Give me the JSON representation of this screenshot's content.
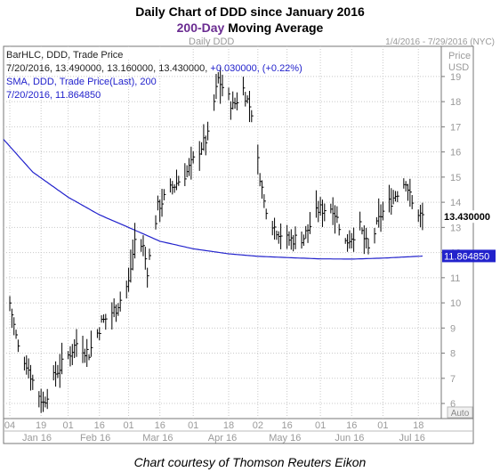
{
  "title_line1": "Daily Chart of DDD since January 2016",
  "title_line2_accent": "200-Day",
  "title_line2_rest": " Moving Average",
  "credit": "Chart courtesy of Thomson Reuters Eikon",
  "colors": {
    "price_bars": "#000000",
    "sma": "#2222cc",
    "accent": "#6a2c91",
    "grid": "#c8c8c8"
  },
  "chart_data": {
    "type": "line",
    "header_left": "Daily DDD",
    "header_right": "1/4/2016 - 7/29/2016 (NYC)",
    "axis_title": [
      "Price",
      "USD"
    ],
    "info_lines": [
      "BarHLC, DDD, Trade Price",
      "7/20/2016, 13.490000, 13.160000, 13.430000, +0.030000, (+0.22%)",
      "SMA, DDD, Trade Price(Last), 200",
      "7/20/2016, 11.864850"
    ],
    "ylim": [
      5.4,
      20.2
    ],
    "yticks": [
      6,
      7,
      8,
      9,
      10,
      11,
      12,
      13,
      14,
      15,
      16,
      17,
      18,
      19
    ],
    "xlim": [
      "2016-01-01",
      "2016-07-29"
    ],
    "x_ticks": [
      {
        "date": "2016-01-04",
        "label": "04"
      },
      {
        "date": "2016-01-19",
        "label": "19"
      },
      {
        "date": "2016-02-01",
        "label": "01"
      },
      {
        "date": "2016-02-16",
        "label": "16"
      },
      {
        "date": "2016-03-01",
        "label": "01"
      },
      {
        "date": "2016-03-16",
        "label": "16"
      },
      {
        "date": "2016-04-01",
        "label": "01"
      },
      {
        "date": "2016-04-18",
        "label": "18"
      },
      {
        "date": "2016-05-02",
        "label": "02"
      },
      {
        "date": "2016-05-16",
        "label": "16"
      },
      {
        "date": "2016-06-01",
        "label": "01"
      },
      {
        "date": "2016-06-16",
        "label": "16"
      },
      {
        "date": "2016-07-01",
        "label": "01"
      },
      {
        "date": "2016-07-18",
        "label": "18"
      }
    ],
    "month_labels": [
      {
        "date": "2016-01-17",
        "label": "Jan 16"
      },
      {
        "date": "2016-02-14",
        "label": "Feb 16"
      },
      {
        "date": "2016-03-15",
        "label": "Mar 16"
      },
      {
        "date": "2016-04-15",
        "label": "Apr 16"
      },
      {
        "date": "2016-05-15",
        "label": "May 16"
      },
      {
        "date": "2016-06-15",
        "label": "Jun 16"
      },
      {
        "date": "2016-07-15",
        "label": "Jul 16"
      }
    ],
    "auto_label": "Auto",
    "last_price": 13.43,
    "last_price_label": "13.430000",
    "sma_value": 11.86485,
    "sma_value_label": "11.864850",
    "series": [
      {
        "kind": "ohlc",
        "keypoints": [
          [
            "2016-01-04",
            10.0
          ],
          [
            "2016-01-08",
            8.2
          ],
          [
            "2016-01-12",
            7.6
          ],
          [
            "2016-01-15",
            6.9
          ],
          [
            "2016-01-20",
            6.0
          ],
          [
            "2016-01-26",
            7.2
          ],
          [
            "2016-02-01",
            7.9
          ],
          [
            "2016-02-05",
            8.4
          ],
          [
            "2016-02-11",
            8.0
          ],
          [
            "2016-02-17",
            9.2
          ],
          [
            "2016-02-24",
            9.8
          ],
          [
            "2016-03-01",
            10.8
          ],
          [
            "2016-03-04",
            12.5
          ],
          [
            "2016-03-08",
            12.2
          ],
          [
            "2016-03-10",
            11.3
          ],
          [
            "2016-03-15",
            13.8
          ],
          [
            "2016-03-22",
            14.6
          ],
          [
            "2016-03-29",
            15.2
          ],
          [
            "2016-04-04",
            16.1
          ],
          [
            "2016-04-08",
            16.6
          ],
          [
            "2016-04-13",
            18.9
          ],
          [
            "2016-04-20",
            17.8
          ],
          [
            "2016-04-25",
            18.5
          ],
          [
            "2016-04-29",
            17.6
          ],
          [
            "2016-05-02",
            15.6
          ],
          [
            "2016-05-05",
            14.0
          ],
          [
            "2016-05-10",
            13.0
          ],
          [
            "2016-05-16",
            12.5
          ],
          [
            "2016-05-24",
            12.6
          ],
          [
            "2016-05-31",
            13.7
          ],
          [
            "2016-06-07",
            13.8
          ],
          [
            "2016-06-13",
            12.4
          ],
          [
            "2016-06-20",
            13.0
          ],
          [
            "2016-06-24",
            12.1
          ],
          [
            "2016-06-30",
            13.5
          ],
          [
            "2016-07-07",
            14.3
          ],
          [
            "2016-07-12",
            14.9
          ],
          [
            "2016-07-15",
            13.9
          ],
          [
            "2016-07-20",
            13.4
          ]
        ]
      },
      {
        "kind": "sma",
        "keypoints": [
          [
            "2016-01-01",
            16.5
          ],
          [
            "2016-01-15",
            15.2
          ],
          [
            "2016-02-01",
            14.2
          ],
          [
            "2016-02-16",
            13.5
          ],
          [
            "2016-03-01",
            13.0
          ],
          [
            "2016-03-16",
            12.45
          ],
          [
            "2016-04-01",
            12.15
          ],
          [
            "2016-04-18",
            11.95
          ],
          [
            "2016-05-02",
            11.85
          ],
          [
            "2016-05-16",
            11.8
          ],
          [
            "2016-06-01",
            11.75
          ],
          [
            "2016-06-16",
            11.74
          ],
          [
            "2016-07-01",
            11.78
          ],
          [
            "2016-07-20",
            11.86
          ]
        ]
      }
    ]
  }
}
